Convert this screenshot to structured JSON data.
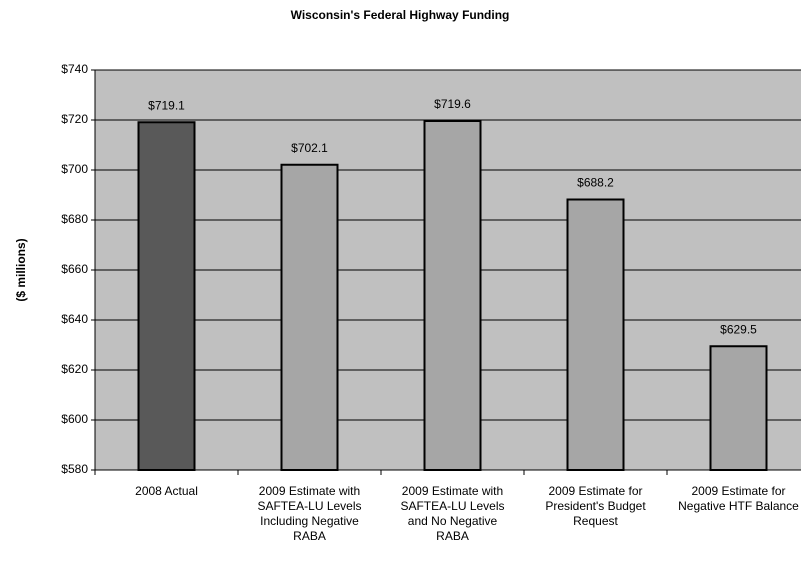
{
  "chart_data": {
    "type": "bar",
    "title": "Wisconsin's Federal Highway Funding",
    "ylabel": "($ millions)",
    "categories": [
      "2008 Actual",
      "2009 Estimate with SAFTEA-LU Levels Including Negative RABA",
      "2009 Estimate with SAFTEA-LU Levels and No Negative RABA",
      "2009 Estimate for President's Budget Request",
      "2009 Estimate for Negative HTF Balance"
    ],
    "values": [
      719.1,
      702.1,
      719.6,
      688.2,
      629.5
    ],
    "value_labels": [
      "$719.1",
      "$702.1",
      "$719.6",
      "$688.2",
      "$629.5"
    ],
    "colors": [
      "#595959",
      "#a6a6a6",
      "#a6a6a6",
      "#a6a6a6",
      "#a6a6a6"
    ],
    "ylim": [
      580,
      740
    ],
    "yticks": [
      {
        "value": 580,
        "label": "$580"
      },
      {
        "value": 600,
        "label": "$600"
      },
      {
        "value": 620,
        "label": "$620"
      },
      {
        "value": 640,
        "label": "$640"
      },
      {
        "value": 660,
        "label": "$660"
      },
      {
        "value": 680,
        "label": "$680"
      },
      {
        "value": 700,
        "label": "$700"
      },
      {
        "value": 720,
        "label": "$720"
      },
      {
        "value": 740,
        "label": "$740"
      }
    ],
    "grid": true
  }
}
